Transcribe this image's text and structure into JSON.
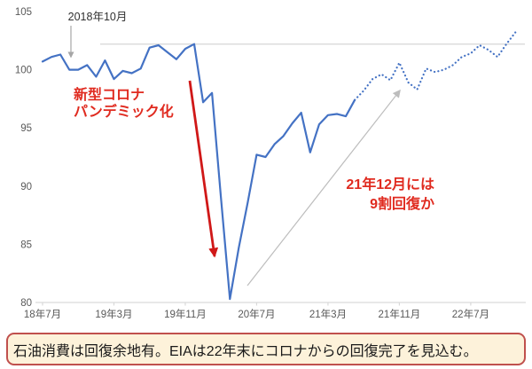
{
  "chart_data": {
    "type": "line",
    "title": "",
    "xlabel": "",
    "ylabel": "",
    "ylim": [
      80,
      105
    ],
    "y_ticks": [
      105,
      100,
      95,
      90,
      85,
      80
    ],
    "x_frequency": "monthly",
    "x_start": "2018-07",
    "x_tick_labels": [
      "18年7月",
      "19年3月",
      "19年11月",
      "20年7月",
      "21年3月",
      "21年11月",
      "22年7月"
    ],
    "x_tick_month_indices": [
      0,
      8,
      16,
      24,
      32,
      40,
      48
    ],
    "grid": "off",
    "legend": "none",
    "reference_line": {
      "value": 102.2,
      "color": "#d6d6d6"
    },
    "line_color": "#4472c4",
    "axis_text_color": "#595959",
    "axis_line_color": "#d9d9d9",
    "series": [
      {
        "name": "actual-solid",
        "line_style": "solid",
        "color": "#4472c4",
        "start_month_index": 0,
        "values": [
          100.7,
          101.1,
          101.3,
          100.0,
          100.0,
          100.4,
          99.4,
          100.8,
          99.2,
          99.9,
          99.7,
          100.1,
          101.9,
          102.1,
          101.5,
          100.9,
          101.8,
          102.2,
          97.2,
          98.0,
          89.0,
          80.3,
          84.7,
          88.6,
          92.7,
          92.5,
          93.6,
          94.3,
          95.4,
          96.3,
          92.9,
          95.3,
          96.1,
          96.2,
          96.0,
          97.4
        ]
      },
      {
        "name": "forecast-dotted",
        "line_style": "dotted",
        "color": "#4472c4",
        "start_month_index": 35,
        "values": [
          97.4,
          98.2,
          99.2,
          99.6,
          99.1,
          100.6,
          98.9,
          98.3,
          100.1,
          99.8,
          100.0,
          100.4,
          101.1,
          101.4,
          102.1,
          101.7,
          101.1,
          102.2,
          103.2
        ]
      }
    ]
  },
  "annotations": {
    "peak_label": {
      "text": "2018年10月",
      "color": "#303030"
    },
    "covid_label": {
      "lines": [
        "新型コロナ",
        "パンデミック化"
      ],
      "color": "#e02b20"
    },
    "recovery_label": {
      "lines": [
        "21年12月には",
        "9割回復か"
      ],
      "color": "#e02b20"
    },
    "arrow_colors": {
      "red": "#d01818",
      "gray": "#a6a6a6",
      "light_gray": "#bdbdbd"
    }
  },
  "caption": {
    "text": "石油消費は回復余地有。EIAは22年末にコロナからの回復完了を見込む。",
    "border_color": "#c0504d",
    "background_color": "#fdf2da"
  }
}
